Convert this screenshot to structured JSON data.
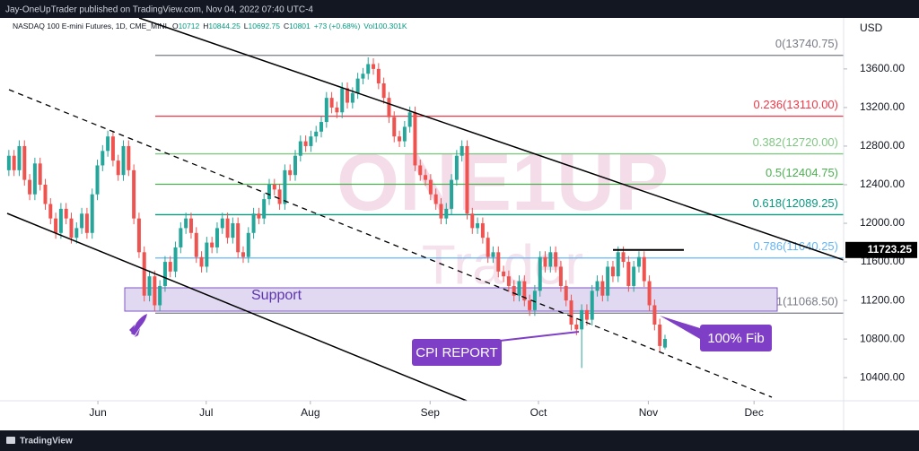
{
  "header": {
    "publisher": "Jay-OneUpTrader published on TradingView.com, Nov 04, 2022 07:40 UTC-4",
    "footer": "TradingView"
  },
  "chart_data": {
    "type": "candlestick",
    "symbol": "NASDAQ 100 E-mini Futures, 1D, CME_MINI",
    "ohlc_labels": [
      "O",
      "H",
      "L",
      "C"
    ],
    "change": "+73 (+0.68%)",
    "volume": "Vol100.301K",
    "currency": "USD",
    "up_color": "#26a69a",
    "down_color": "#ef5350",
    "open": [
      12550,
      12700,
      12550,
      12800,
      12450,
      12300,
      12620,
      12400,
      12200,
      12050,
      11900,
      12150,
      12050,
      11850,
      11950,
      12100,
      11900,
      12300,
      12600,
      12750,
      12900,
      12650,
      12500,
      12800,
      12550,
      12050,
      11700,
      11250,
      11450,
      11150,
      11350,
      11600,
      11500,
      11750,
      11950,
      12050,
      11900,
      11650,
      11550,
      11800,
      11750,
      11950,
      12050,
      11850,
      12000,
      11700,
      11650,
      11900,
      12100,
      12050,
      12250,
      12400,
      12350,
      12200,
      12550,
      12500,
      12700,
      12850,
      12800,
      12900,
      12950,
      13050,
      13300,
      13200,
      13150,
      13400,
      13250,
      13350,
      13500,
      13550,
      13650,
      13600,
      13450,
      13300,
      13100,
      12900,
      12850,
      13000,
      13150,
      12600,
      12500,
      12450,
      12300,
      12200,
      12050,
      12150,
      12450,
      12700,
      12800,
      12100,
      11950,
      12000,
      11850,
      11650,
      11700,
      11500,
      11450,
      11350,
      11250,
      11400,
      11200,
      11100,
      11300,
      11650,
      11550,
      11700,
      11550,
      11350,
      11200,
      10950,
      10900,
      11100,
      11000,
      11300,
      11400,
      11250,
      11550,
      11450,
      11700,
      11600,
      11350,
      11550,
      11650,
      11400,
      11150,
      10950,
      10712
    ],
    "high": [
      12760,
      12760,
      12860,
      12860,
      12510,
      12680,
      12680,
      12460,
      12260,
      12110,
      12210,
      12210,
      12110,
      12010,
      12160,
      12160,
      12360,
      12660,
      12810,
      12960,
      12960,
      12710,
      12860,
      12860,
      12610,
      12110,
      11760,
      11510,
      11510,
      11410,
      11660,
      11660,
      11810,
      12010,
      12110,
      12110,
      11960,
      11710,
      11860,
      11860,
      12010,
      12110,
      12110,
      12060,
      12060,
      11760,
      11960,
      12160,
      12160,
      12310,
      12460,
      12460,
      12410,
      12610,
      12610,
      12760,
      12910,
      12910,
      12960,
      13010,
      13110,
      13360,
      13360,
      13260,
      13460,
      13460,
      13410,
      13560,
      13610,
      13720,
      13710,
      13660,
      13510,
      13360,
      13160,
      12960,
      13060,
      13210,
      13210,
      12660,
      12560,
      12510,
      12360,
      12260,
      12210,
      12510,
      12760,
      12860,
      12860,
      12160,
      12060,
      12060,
      11910,
      11760,
      11760,
      11560,
      11510,
      11410,
      11460,
      11460,
      11260,
      11360,
      11710,
      11710,
      11760,
      11760,
      11610,
      11410,
      11260,
      11010,
      11160,
      11160,
      11360,
      11460,
      11460,
      11610,
      11610,
      11760,
      11760,
      11660,
      11610,
      11710,
      11710,
      11460,
      11210,
      11010,
      10844.25
    ],
    "low": [
      12490,
      12490,
      12490,
      12390,
      12240,
      12240,
      12340,
      12140,
      11990,
      11840,
      11840,
      11990,
      11790,
      11790,
      11890,
      11840,
      11840,
      12240,
      12540,
      12690,
      12590,
      12440,
      12440,
      12490,
      11990,
      11640,
      11190,
      11190,
      11090,
      11090,
      11290,
      11440,
      11440,
      11690,
      11890,
      11840,
      11590,
      11490,
      11490,
      11690,
      11690,
      11890,
      11790,
      11790,
      11640,
      11590,
      11590,
      11840,
      11990,
      11990,
      12190,
      12290,
      12140,
      12140,
      12440,
      12440,
      12640,
      12740,
      12740,
      12840,
      12890,
      12990,
      13140,
      13090,
      13090,
      13190,
      13190,
      13290,
      13440,
      13490,
      13540,
      13390,
      13240,
      13040,
      12840,
      12790,
      12790,
      12940,
      12540,
      12440,
      12390,
      12240,
      12140,
      11990,
      11990,
      12090,
      12390,
      12640,
      12040,
      11890,
      11890,
      11790,
      11590,
      11590,
      11440,
      11390,
      11290,
      11190,
      11190,
      11140,
      11040,
      11040,
      11240,
      11490,
      11490,
      11490,
      11290,
      11140,
      10890,
      10840,
      10500,
      10940,
      10940,
      11240,
      11190,
      11190,
      11390,
      11390,
      11540,
      11290,
      11290,
      11490,
      11340,
      11090,
      10890,
      10668,
      10692.75
    ],
    "close": [
      12700,
      12550,
      12800,
      12450,
      12300,
      12620,
      12400,
      12200,
      12050,
      11900,
      12150,
      12050,
      11850,
      11950,
      12100,
      11900,
      12300,
      12600,
      12750,
      12900,
      12650,
      12500,
      12800,
      12550,
      12050,
      11700,
      11250,
      11450,
      11150,
      11350,
      11600,
      11500,
      11750,
      11950,
      12050,
      11900,
      11650,
      11550,
      11800,
      11750,
      11950,
      12050,
      11850,
      12000,
      11700,
      11650,
      11900,
      12100,
      12050,
      12250,
      12400,
      12350,
      12200,
      12550,
      12500,
      12700,
      12850,
      12800,
      12900,
      12950,
      13050,
      13300,
      13200,
      13150,
      13400,
      13250,
      13350,
      13500,
      13550,
      13650,
      13600,
      13450,
      13300,
      13100,
      12900,
      12850,
      13000,
      13150,
      12600,
      12500,
      12450,
      12300,
      12200,
      12050,
      12150,
      12450,
      12700,
      12800,
      12100,
      11950,
      12000,
      11850,
      11650,
      11700,
      11500,
      11450,
      11350,
      11250,
      11400,
      11200,
      11100,
      11300,
      11650,
      11550,
      11700,
      11550,
      11350,
      11200,
      10950,
      10900,
      11100,
      11000,
      11300,
      11400,
      11250,
      11550,
      11450,
      11700,
      11600,
      11350,
      11550,
      11650,
      11400,
      11150,
      10950,
      10728,
      10801
    ],
    "xlim": [
      -1.7,
      160.3
    ],
    "xticks": [
      {
        "value": 17.1,
        "label": "Jun"
      },
      {
        "value": 37.9,
        "label": "Jul"
      },
      {
        "value": 57.9,
        "label": "Aug"
      },
      {
        "value": 80.9,
        "label": "Sep"
      },
      {
        "value": 101.7,
        "label": "Oct"
      },
      {
        "value": 122.8,
        "label": "Nov"
      },
      {
        "value": 143.1,
        "label": "Dec"
      }
    ],
    "ylim": [
      10160,
      14110
    ],
    "yticks": [
      {
        "value": 10400,
        "label": "10400.00"
      },
      {
        "value": 10800,
        "label": "10800.00"
      },
      {
        "value": 11200,
        "label": "11200.00"
      },
      {
        "value": 11600,
        "label": "11600.00"
      },
      {
        "value": 12000,
        "label": "12000.00"
      },
      {
        "value": 12400,
        "label": "12400.00"
      },
      {
        "value": 12800,
        "label": "12800.00"
      },
      {
        "value": 13200,
        "label": "13200.00"
      },
      {
        "value": 13600,
        "label": "13600.00"
      }
    ],
    "fib_levels": [
      {
        "value": 13740.75,
        "label": "0(13740.75)",
        "color": "#787b86"
      },
      {
        "value": 13110.0,
        "label": "0.236(13110.00)",
        "color": "#f23645"
      },
      {
        "value": 12720.0,
        "label": "0.382(12720.00)",
        "color": "#81c784"
      },
      {
        "value": 12404.75,
        "label": "0.5(12404.75)",
        "color": "#4caf50"
      },
      {
        "value": 12089.25,
        "label": "0.618(12089.25)",
        "color": "#089981"
      },
      {
        "value": 11640.25,
        "label": "0.786(11640.25)",
        "color": "#64b5f6"
      },
      {
        "value": 11068.5,
        "label": "1(11068.50)",
        "color": "#787b86"
      }
    ],
    "price_line": 11723.25,
    "support_label": "Support",
    "annotations": [
      "CPI REPORT",
      "100% Fib"
    ],
    "watermark": [
      "ONE1UP",
      "Trader"
    ]
  }
}
